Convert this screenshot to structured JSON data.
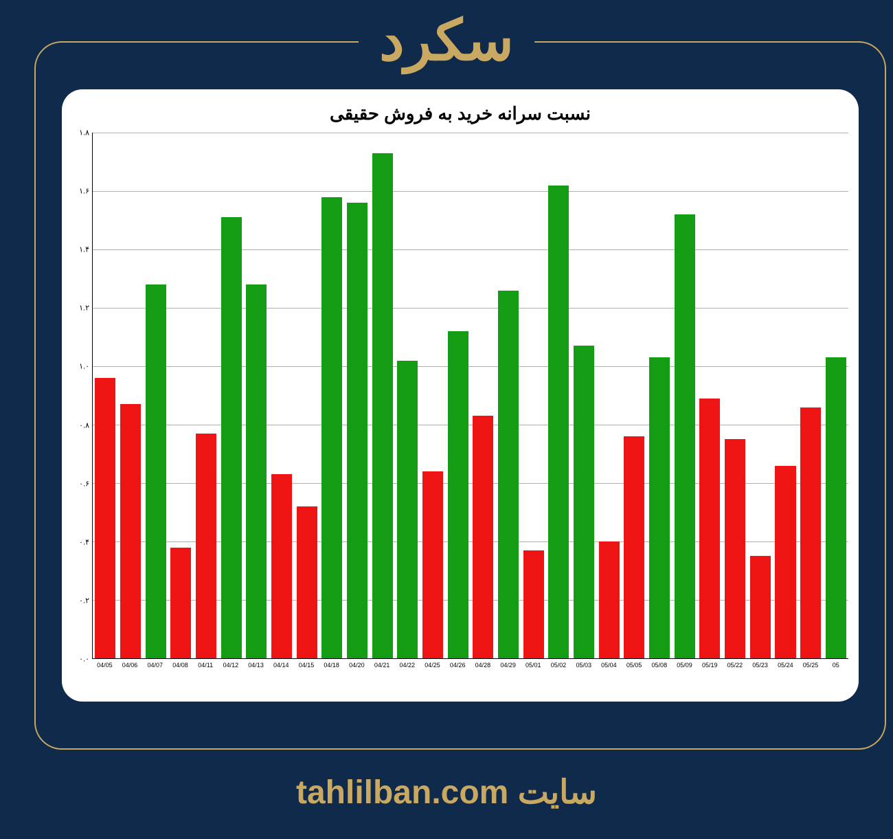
{
  "header": {
    "title": "سکرد"
  },
  "chart": {
    "type": "bar",
    "title": "نسبت سرانه خرید به فروش حقیقی",
    "background_color": "#ffffff",
    "grid_color": "#b0b0b0",
    "title_fontsize": 26,
    "title_color": "#000000",
    "threshold": 1.0,
    "color_above": "#149c14",
    "color_below": "#ee1414",
    "bar_width": 0.82,
    "ylim": [
      0.0,
      1.8
    ],
    "ytick_step": 0.2,
    "y_ticks": [
      "۰.۰",
      "۰.۲",
      "۰.۴",
      "۰.۶",
      "۰.۸",
      "۱.۰",
      "۱.۲",
      "۱.۴",
      "۱.۶",
      "۱.۸"
    ],
    "y_tick_values": [
      0.0,
      0.2,
      0.4,
      0.6,
      0.8,
      1.0,
      1.2,
      1.4,
      1.6,
      1.8
    ],
    "x_tick_fontsize": 9,
    "y_tick_fontsize": 11,
    "categories": [
      "04/05",
      "04/06",
      "04/07",
      "04/08",
      "04/11",
      "04/12",
      "04/13",
      "04/14",
      "04/15",
      "04/18",
      "04/20",
      "04/21",
      "04/22",
      "04/25",
      "04/26",
      "04/28",
      "04/29",
      "05/01",
      "05/02",
      "05/03",
      "05/04",
      "05/05",
      "05/08",
      "05/09",
      "05/19",
      "05/22",
      "05/23",
      "05/24",
      "05/25",
      "05"
    ],
    "values": [
      0.96,
      0.87,
      1.28,
      0.38,
      0.77,
      1.51,
      1.28,
      0.63,
      0.52,
      1.58,
      1.56,
      1.73,
      1.02,
      0.64,
      1.12,
      0.83,
      1.26,
      0.37,
      1.62,
      1.07,
      0.4,
      0.76,
      1.03,
      1.52,
      0.89,
      0.75,
      0.35,
      0.66,
      0.86,
      1.03
    ]
  },
  "footer": {
    "text": "سایت tahlilban.com"
  },
  "colors": {
    "page_background": "#0f2a4a",
    "frame_border": "#c9a961",
    "accent_text": "#c9a961"
  }
}
